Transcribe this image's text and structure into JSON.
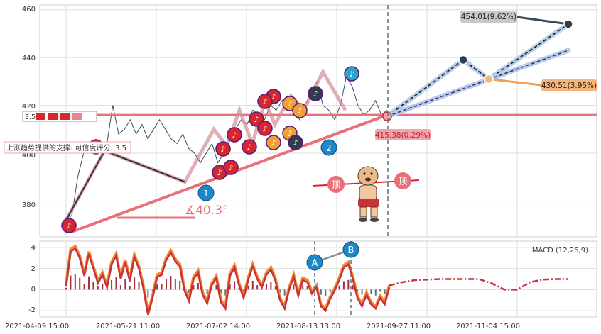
{
  "chart_data": [
    {
      "type": "line",
      "x_labels": [
        "2021-04-09 15:00",
        "2021-05-21 11:00",
        "2021-07-02 14:00",
        "2021-08-13 13:00",
        "2021-09-27 11:00",
        "2021-11-04 15:00"
      ],
      "ylim": [
        365,
        462
      ],
      "yticks": [
        380,
        400,
        420,
        440,
        460
      ],
      "grid": true,
      "price_series": [
        372,
        374,
        390,
        400,
        402,
        404,
        400,
        404,
        420,
        408,
        410,
        414,
        408,
        412,
        406,
        410,
        414,
        410,
        406,
        404,
        408,
        402,
        400,
        396,
        400,
        404,
        396,
        400,
        405,
        410,
        414,
        412,
        418,
        416,
        414,
        420,
        418,
        422,
        424,
        418,
        414,
        420,
        426,
        430,
        420,
        418,
        414,
        420,
        432,
        428,
        420,
        416,
        418,
        422,
        416,
        418
      ],
      "zigzag_points": [
        [
          0,
          372
        ],
        [
          0.12,
          401
        ],
        [
          0.37,
          388
        ],
        [
          0.46,
          410
        ],
        [
          0.5,
          403
        ],
        [
          0.54,
          418
        ],
        [
          0.58,
          404
        ],
        [
          0.62,
          422
        ],
        [
          0.65,
          412
        ],
        [
          0.7,
          424
        ],
        [
          0.74,
          418
        ],
        [
          0.8,
          434
        ],
        [
          0.87,
          418
        ]
      ],
      "support_line": {
        "from": 367,
        "to": 416
      },
      "resistance_level": 416,
      "projections": [
        {
          "to": 439,
          "then": 431,
          "final": 454
        },
        {
          "to": 443,
          "final": 454
        }
      ],
      "callouts": {
        "target_high": "454.01(9.62%)",
        "target_low": "430.51(3.95%)",
        "current": "415.38(0.29%)",
        "angle": "∡40.3°",
        "support_text": "上涨趋势提供的支撑: 可信度评分: 3.5",
        "resistance_score": "3.5",
        "top_label_left": "顶",
        "top_label_right": "顶",
        "wave_1": "1",
        "wave_2": "2"
      }
    },
    {
      "type": "line",
      "title": "MACD (12,26,9)",
      "ylim": [
        -2.6,
        4.6
      ],
      "yticks": [
        4,
        2,
        0,
        -2
      ],
      "marker_a": "A",
      "marker_b": "B",
      "macd_series": [
        0.5,
        3.8,
        4.1,
        3.2,
        1.5,
        3.6,
        2.2,
        0.8,
        1.6,
        0.4,
        2.6,
        3.4,
        1.2,
        2.8,
        1.0,
        3.3,
        2.2,
        0.3,
        -2.2,
        -0.6,
        1.4,
        1.6,
        3.0,
        3.7,
        2.9,
        2.4,
        0.1,
        -0.9,
        1.2,
        1.8,
        -0.3,
        -1.1,
        0.6,
        1.3,
        -1.0,
        -1.6,
        1.5,
        2.3,
        0.6,
        -0.6,
        1.1,
        2.4,
        1.2,
        0.4,
        1.6,
        2.1,
        1.0,
        -0.8,
        -1.6,
        0.2,
        1.4,
        -0.4,
        1.1,
        0.9,
        -0.2,
        0.4,
        -1.4,
        -1.8,
        -0.7,
        0.1,
        1.1,
        2.3,
        2.6,
        1.2,
        -0.6,
        -1.4,
        -0.3,
        -1.2,
        -1.6,
        -0.6,
        -1.2,
        0.4
      ],
      "macd_projection": [
        0.4,
        0.7,
        0.9,
        0.95,
        1.0,
        1.0,
        1.0,
        1.0,
        0.6,
        0.0,
        0.0,
        0.7,
        0.95,
        1.0,
        1.0
      ]
    }
  ]
}
